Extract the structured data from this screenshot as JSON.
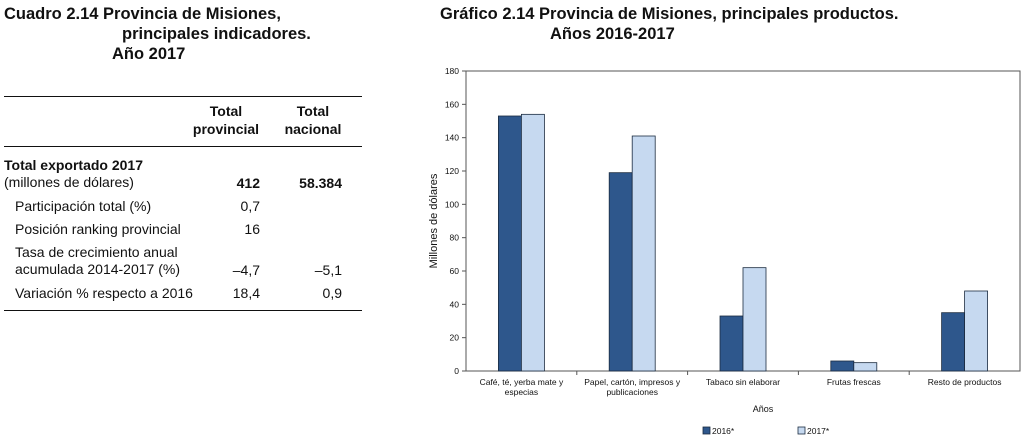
{
  "table": {
    "title_line1": "Cuadro 2.14 Provincia de Misiones,",
    "title_line2": "principales indicadores.",
    "title_line3": "Año 2017",
    "col_provincial_1": "Total",
    "col_provincial_2": "provincial",
    "col_nacional_1": "Total",
    "col_nacional_2": "nacional",
    "rows": [
      {
        "label1": "Total exportado 2017",
        "label2": "(millones de dólares)",
        "provincial": "412",
        "nacional": "58.384"
      },
      {
        "label1": "Participación total (%)",
        "provincial": "0,7",
        "nacional": ""
      },
      {
        "label1": "Posición ranking provincial",
        "provincial": "16",
        "nacional": ""
      },
      {
        "label1": "Tasa de crecimiento anual",
        "label2": "acumulada 2014-2017 (%)",
        "provincial": "–4,7",
        "nacional": "–5,1"
      },
      {
        "label1": "Variación % respecto a 2016",
        "provincial": "18,4",
        "nacional": "0,9"
      }
    ]
  },
  "chart_title_line1": "Gráfico 2.14 Provincia de Misiones, principales productos.",
  "chart_title_line2": "Años 2016-2017",
  "chart_data": {
    "type": "bar",
    "categories": [
      [
        "Café, té, yerba mate y",
        "especias"
      ],
      [
        "Papel, cartón, impresos y",
        "publicaciones"
      ],
      [
        "Tabaco sin elaborar"
      ],
      [
        "Frutas frescas"
      ],
      [
        "Resto de productos"
      ]
    ],
    "series": [
      {
        "name": "2016*",
        "values": [
          153,
          119,
          33,
          6,
          35
        ],
        "color": "#2e578c"
      },
      {
        "name": "2017*",
        "values": [
          154,
          141,
          62,
          5,
          48
        ],
        "color": "#c6d9f0"
      }
    ],
    "ylabel": "Millones de dólares",
    "xlabel": "Años",
    "ylim": [
      0,
      180
    ],
    "yticks": [
      0,
      20,
      40,
      60,
      80,
      100,
      120,
      140,
      160,
      180
    ],
    "grid": false,
    "legend": "bottom-right"
  }
}
